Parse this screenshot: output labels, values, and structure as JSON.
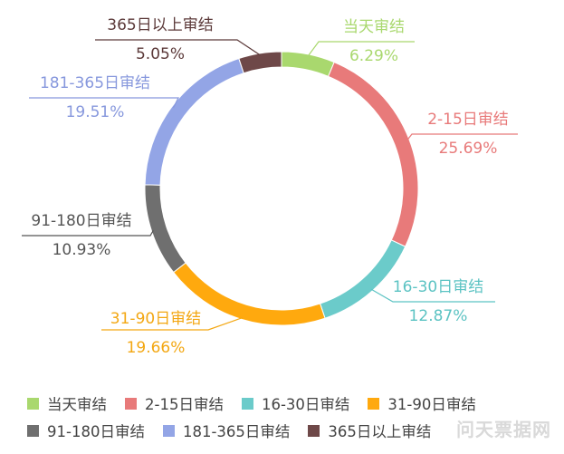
{
  "chart_data": {
    "type": "pie",
    "subtype": "donut",
    "categories": [
      "当天审结",
      "2-15日审结",
      "16-30日审结",
      "31-90日审结",
      "91-180日审结",
      "181-365日审结",
      "365日以上审结"
    ],
    "values": [
      6.29,
      25.69,
      12.87,
      19.66,
      10.93,
      19.51,
      5.05
    ],
    "value_labels": [
      "6.29%",
      "25.69%",
      "12.87%",
      "19.66%",
      "10.93%",
      "19.51%",
      "5.05%"
    ],
    "colors": [
      "#a9d86e",
      "#e87a7a",
      "#6bcbca",
      "#ffa90e",
      "#6f6f6f",
      "#93a5e6",
      "#6e4848"
    ],
    "label_colors": [
      "#a9d86e",
      "#e87a7a",
      "#5cc3c3",
      "#f3a712",
      "#555555",
      "#8798dd",
      "#5c3a3a"
    ],
    "legend": "bottom"
  },
  "watermark": "问天票据网"
}
